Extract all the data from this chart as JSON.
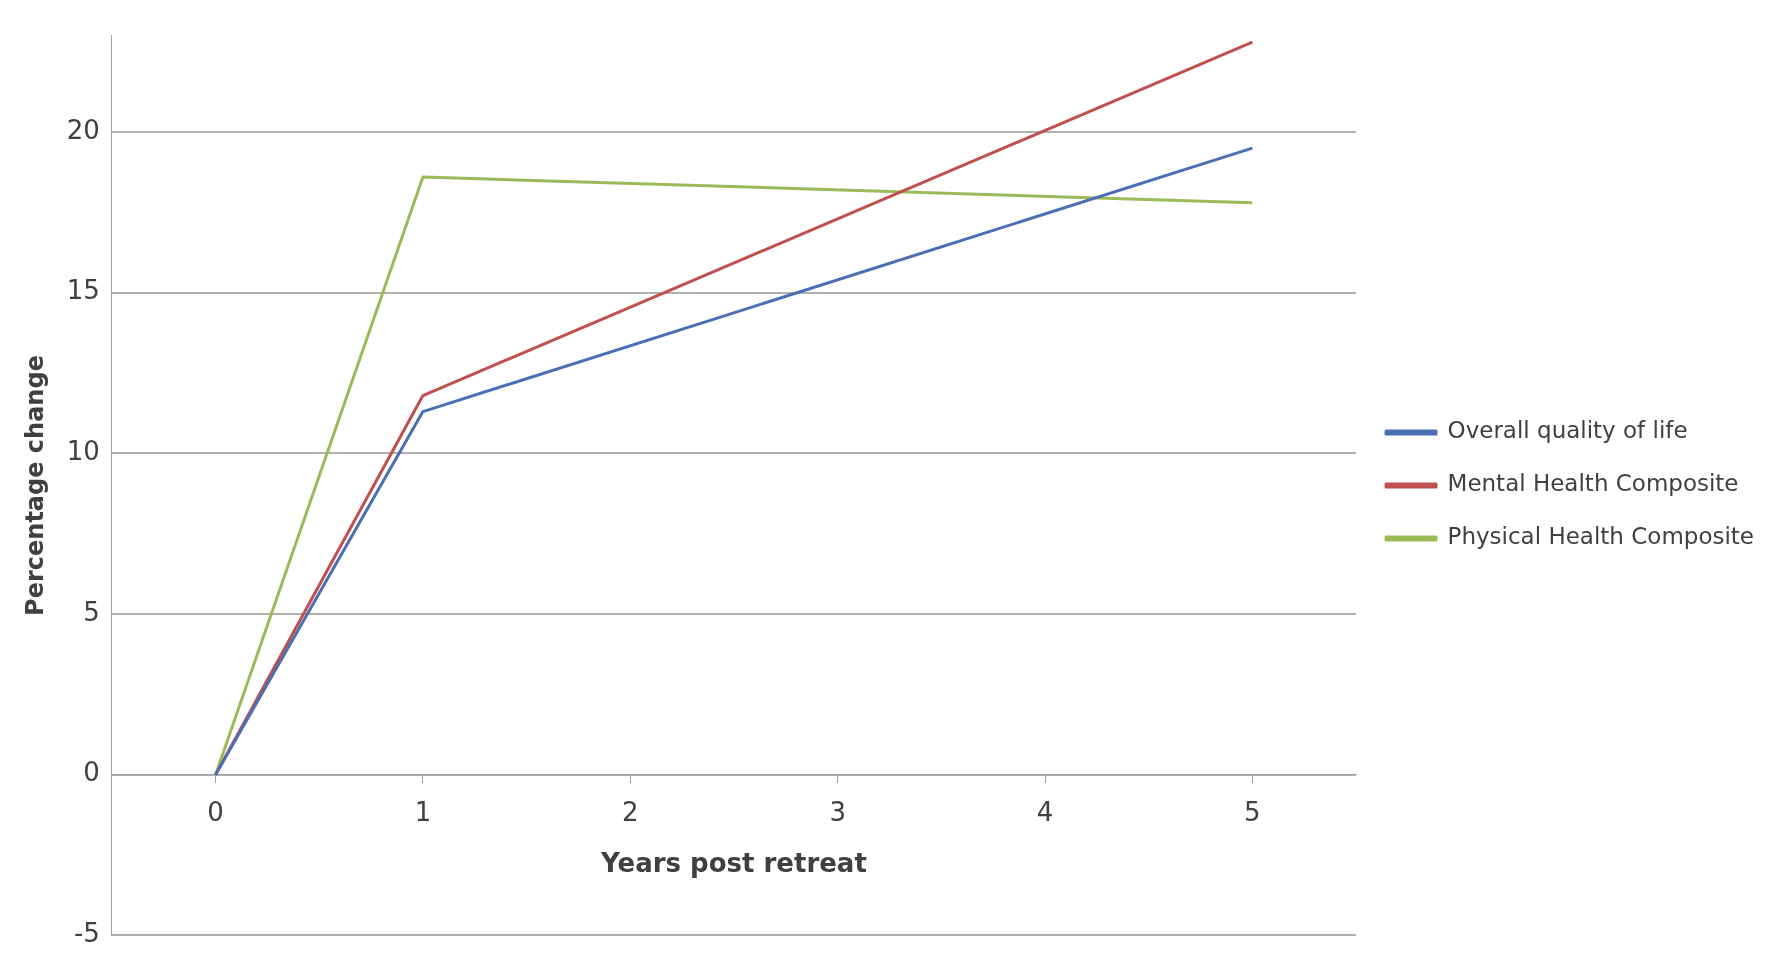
{
  "chart_data": {
    "type": "line",
    "xlabel": "Years post retreat",
    "ylabel": "Percentage change",
    "x": [
      0,
      1,
      5
    ],
    "xlim": [
      -0.5,
      5.5
    ],
    "xticks": [
      0,
      1,
      2,
      3,
      4,
      5
    ],
    "ylim": [
      -5,
      23
    ],
    "yticks": [
      -5,
      0,
      5,
      10,
      15,
      20
    ],
    "grid": "y",
    "legend": "right",
    "marker": "none",
    "line_style": "solid",
    "series": [
      {
        "name": "Overall quality of life",
        "color": "#4a6fb5",
        "values": [
          0,
          11.3,
          19.5
        ]
      },
      {
        "name": "Mental Health Composite",
        "color": "#c0504d",
        "values": [
          0,
          11.8,
          22.8
        ]
      },
      {
        "name": "Physical Health Composite",
        "color": "#9bbb59",
        "values": [
          0,
          18.6,
          17.8
        ]
      }
    ]
  }
}
